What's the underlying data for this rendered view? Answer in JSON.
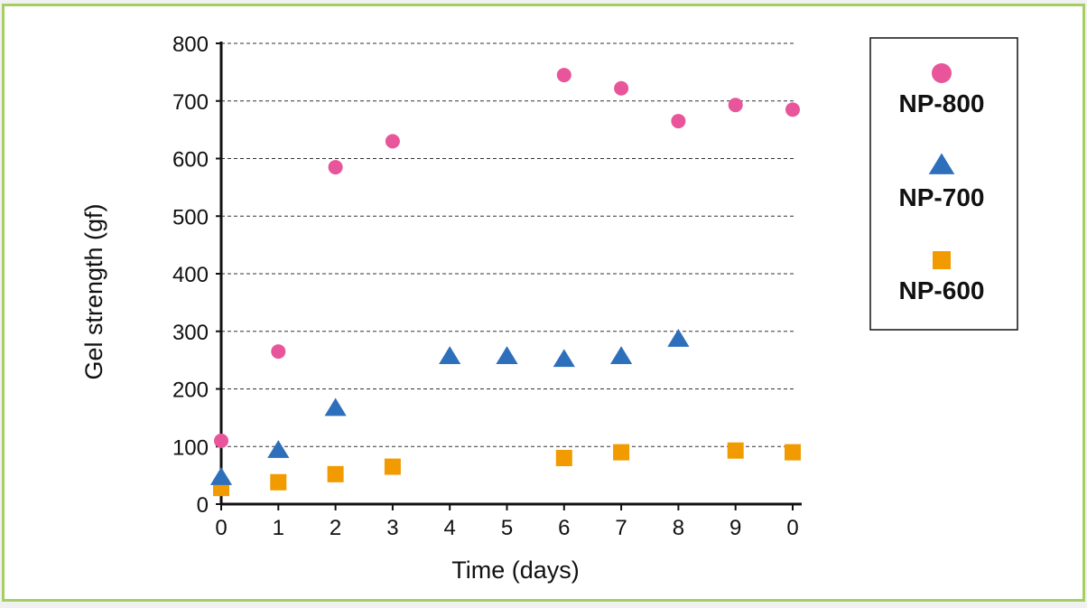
{
  "chart_data": {
    "type": "scatter",
    "title": "",
    "xlabel": "Time (days)",
    "ylabel": "Gel strength (gf)",
    "x_tick_labels": [
      "0",
      "1",
      "2",
      "3",
      "4",
      "5",
      "6",
      "7",
      "8",
      "9",
      "0"
    ],
    "y_ticks": [
      0,
      100,
      200,
      300,
      400,
      500,
      600,
      700,
      800
    ],
    "ylim": [
      0,
      800
    ],
    "grid": "horizontal dashed",
    "legend_position": "right",
    "series": [
      {
        "name": "NP-800",
        "marker": "circle",
        "color": "#e8559a",
        "x": [
          0,
          1,
          2,
          3,
          6,
          7,
          8,
          9,
          10
        ],
        "y": [
          110,
          265,
          585,
          630,
          745,
          722,
          665,
          693,
          685
        ]
      },
      {
        "name": "NP-700",
        "marker": "triangle",
        "color": "#2e6fbb",
        "x": [
          0,
          1,
          2,
          4,
          5,
          6,
          7,
          8
        ],
        "y": [
          45,
          92,
          165,
          255,
          255,
          250,
          255,
          285
        ]
      },
      {
        "name": "NP-600",
        "marker": "square",
        "color": "#f29b00",
        "x": [
          0,
          1,
          2,
          3,
          6,
          7,
          9,
          10
        ],
        "y": [
          28,
          38,
          52,
          65,
          80,
          90,
          93,
          90
        ]
      }
    ]
  }
}
